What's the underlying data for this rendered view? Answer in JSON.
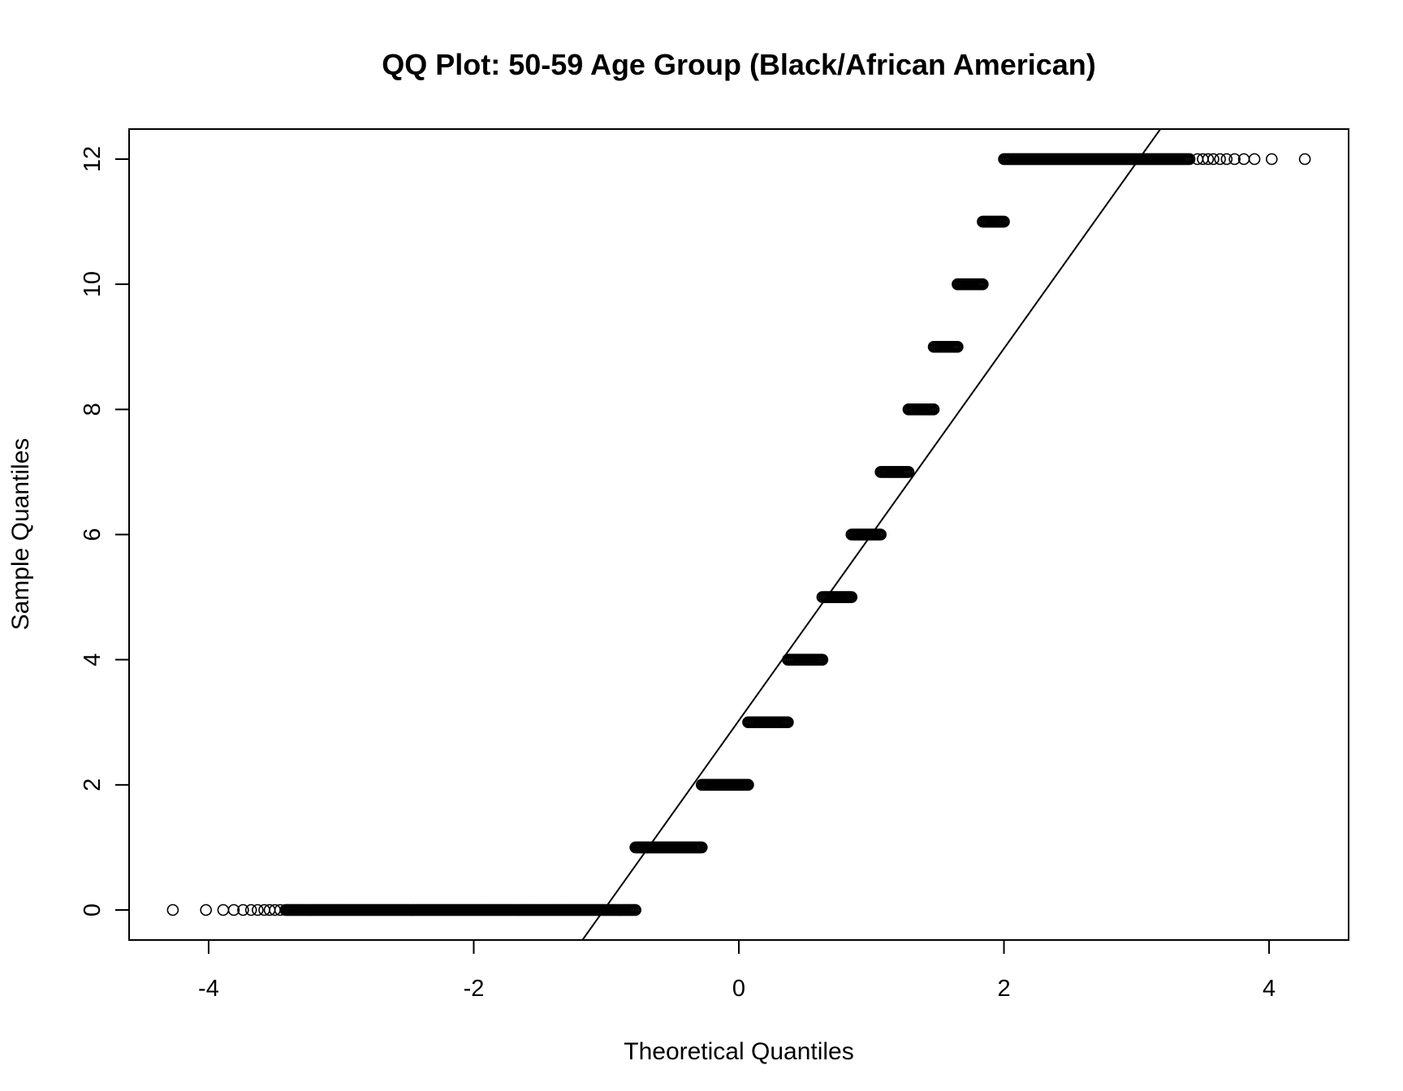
{
  "chart_data": {
    "type": "scatter",
    "title": "QQ Plot: 50-59 Age Group (Black/African American)",
    "xlabel": "Theoretical Quantiles",
    "ylabel": "Sample Quantiles",
    "xlim": [
      -4.6,
      4.6
    ],
    "ylim": [
      -0.48,
      12.48
    ],
    "x_ticks": [
      -4,
      -2,
      0,
      2,
      4
    ],
    "x_tick_labels": [
      "-4",
      "-2",
      "0",
      "2",
      "4"
    ],
    "y_ticks": [
      0,
      2,
      4,
      6,
      8,
      10,
      12
    ],
    "y_tick_labels": [
      "0",
      "2",
      "4",
      "6",
      "8",
      "10",
      "12"
    ],
    "grid": false,
    "marker": "open-circle",
    "series": [
      {
        "levels": [
          {
            "y": 0,
            "x_min": -3.42,
            "x_max": -0.78
          },
          {
            "y": 1,
            "x_min": -0.78,
            "x_max": -0.28
          },
          {
            "y": 2,
            "x_min": -0.28,
            "x_max": 0.07
          },
          {
            "y": 3,
            "x_min": 0.07,
            "x_max": 0.37
          },
          {
            "y": 4,
            "x_min": 0.37,
            "x_max": 0.63
          },
          {
            "y": 5,
            "x_min": 0.63,
            "x_max": 0.85
          },
          {
            "y": 6,
            "x_min": 0.85,
            "x_max": 1.07
          },
          {
            "y": 7,
            "x_min": 1.07,
            "x_max": 1.28
          },
          {
            "y": 8,
            "x_min": 1.28,
            "x_max": 1.47
          },
          {
            "y": 9,
            "x_min": 1.47,
            "x_max": 1.65
          },
          {
            "y": 10,
            "x_min": 1.65,
            "x_max": 1.84
          },
          {
            "y": 11,
            "x_min": 1.84,
            "x_max": 2.0
          },
          {
            "y": 12,
            "x_min": 2.0,
            "x_max": 3.4
          }
        ],
        "tail_points": [
          {
            "x": -4.27,
            "y": 0
          },
          {
            "x": -4.02,
            "y": 0
          },
          {
            "x": -3.89,
            "y": 0
          },
          {
            "x": -3.81,
            "y": 0
          },
          {
            "x": -3.74,
            "y": 0
          },
          {
            "x": -3.68,
            "y": 0
          },
          {
            "x": -3.63,
            "y": 0
          },
          {
            "x": -3.58,
            "y": 0
          },
          {
            "x": -3.54,
            "y": 0
          },
          {
            "x": -3.5,
            "y": 0
          },
          {
            "x": -3.46,
            "y": 0
          },
          {
            "x": 3.46,
            "y": 12
          },
          {
            "x": 3.5,
            "y": 12
          },
          {
            "x": 3.54,
            "y": 12
          },
          {
            "x": 3.58,
            "y": 12
          },
          {
            "x": 3.63,
            "y": 12
          },
          {
            "x": 3.68,
            "y": 12
          },
          {
            "x": 3.74,
            "y": 12
          },
          {
            "x": 3.81,
            "y": 12
          },
          {
            "x": 3.89,
            "y": 12
          },
          {
            "x": 4.02,
            "y": 12
          },
          {
            "x": 4.27,
            "y": 12
          }
        ]
      }
    ],
    "reference_line": {
      "x1": -1.18,
      "y1": -0.48,
      "x2": 3.18,
      "y2": 12.48
    }
  }
}
